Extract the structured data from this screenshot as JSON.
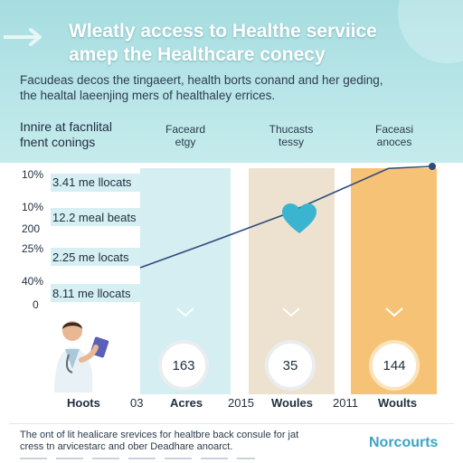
{
  "header": {
    "title_lines": [
      "Wleatly access to Healthe serviice",
      "amep the Healthcare conecy"
    ],
    "intro_lines": [
      "Facudeas decos the tingaeert, health borts conand and her geding,",
      "the healtal laeenjing mers of healthaley errices."
    ],
    "col_heads": [
      {
        "lines": [
          "Innire at facnlital",
          "fnent conings"
        ]
      },
      {
        "lines": [
          "Faceard",
          "etgy"
        ]
      },
      {
        "lines": [
          "Thucasts",
          "tessy"
        ]
      },
      {
        "lines": [
          "Faceasi",
          "anoces"
        ]
      }
    ]
  },
  "chart_data": {
    "type": "line",
    "y_tick_labels": [
      "10%",
      "10%",
      "200",
      "25%",
      "40%",
      "0"
    ],
    "row_labels": [
      "3.41 me llocats",
      "12.2 meal beats",
      "2.25 me locats",
      "8.11 me llocats"
    ],
    "x_labels": [
      "Hoots",
      "03",
      "Acres",
      "2015",
      "Woules",
      "2011",
      "Woults"
    ],
    "highlight_values": [
      "163",
      "35",
      "144"
    ],
    "line_points_normalized": [
      [
        0.0,
        0.0
      ],
      [
        0.22,
        0.23
      ],
      [
        0.49,
        0.52
      ],
      [
        0.85,
        0.98
      ],
      [
        1.0,
        1.0
      ]
    ],
    "line_color": "#2f4a7a",
    "band_colors": [
      "#d4eef2",
      "#ece2cf",
      "#f6c376"
    ]
  },
  "footer": {
    "lines": [
      "The ont of lit healicare srevices for healtbre back consule for jat",
      "cress tn arvicestarc and ober Deadhare anoarct."
    ],
    "brand": "Norcourts"
  },
  "colors": {
    "header_bg": "#a6dde0",
    "accent_heart": "#3bb5cf",
    "brand": "#3ea3c4"
  },
  "icons": [
    "arrow-right-icon",
    "heart-icon",
    "chevron-down-icon",
    "doctor-illustration"
  ]
}
